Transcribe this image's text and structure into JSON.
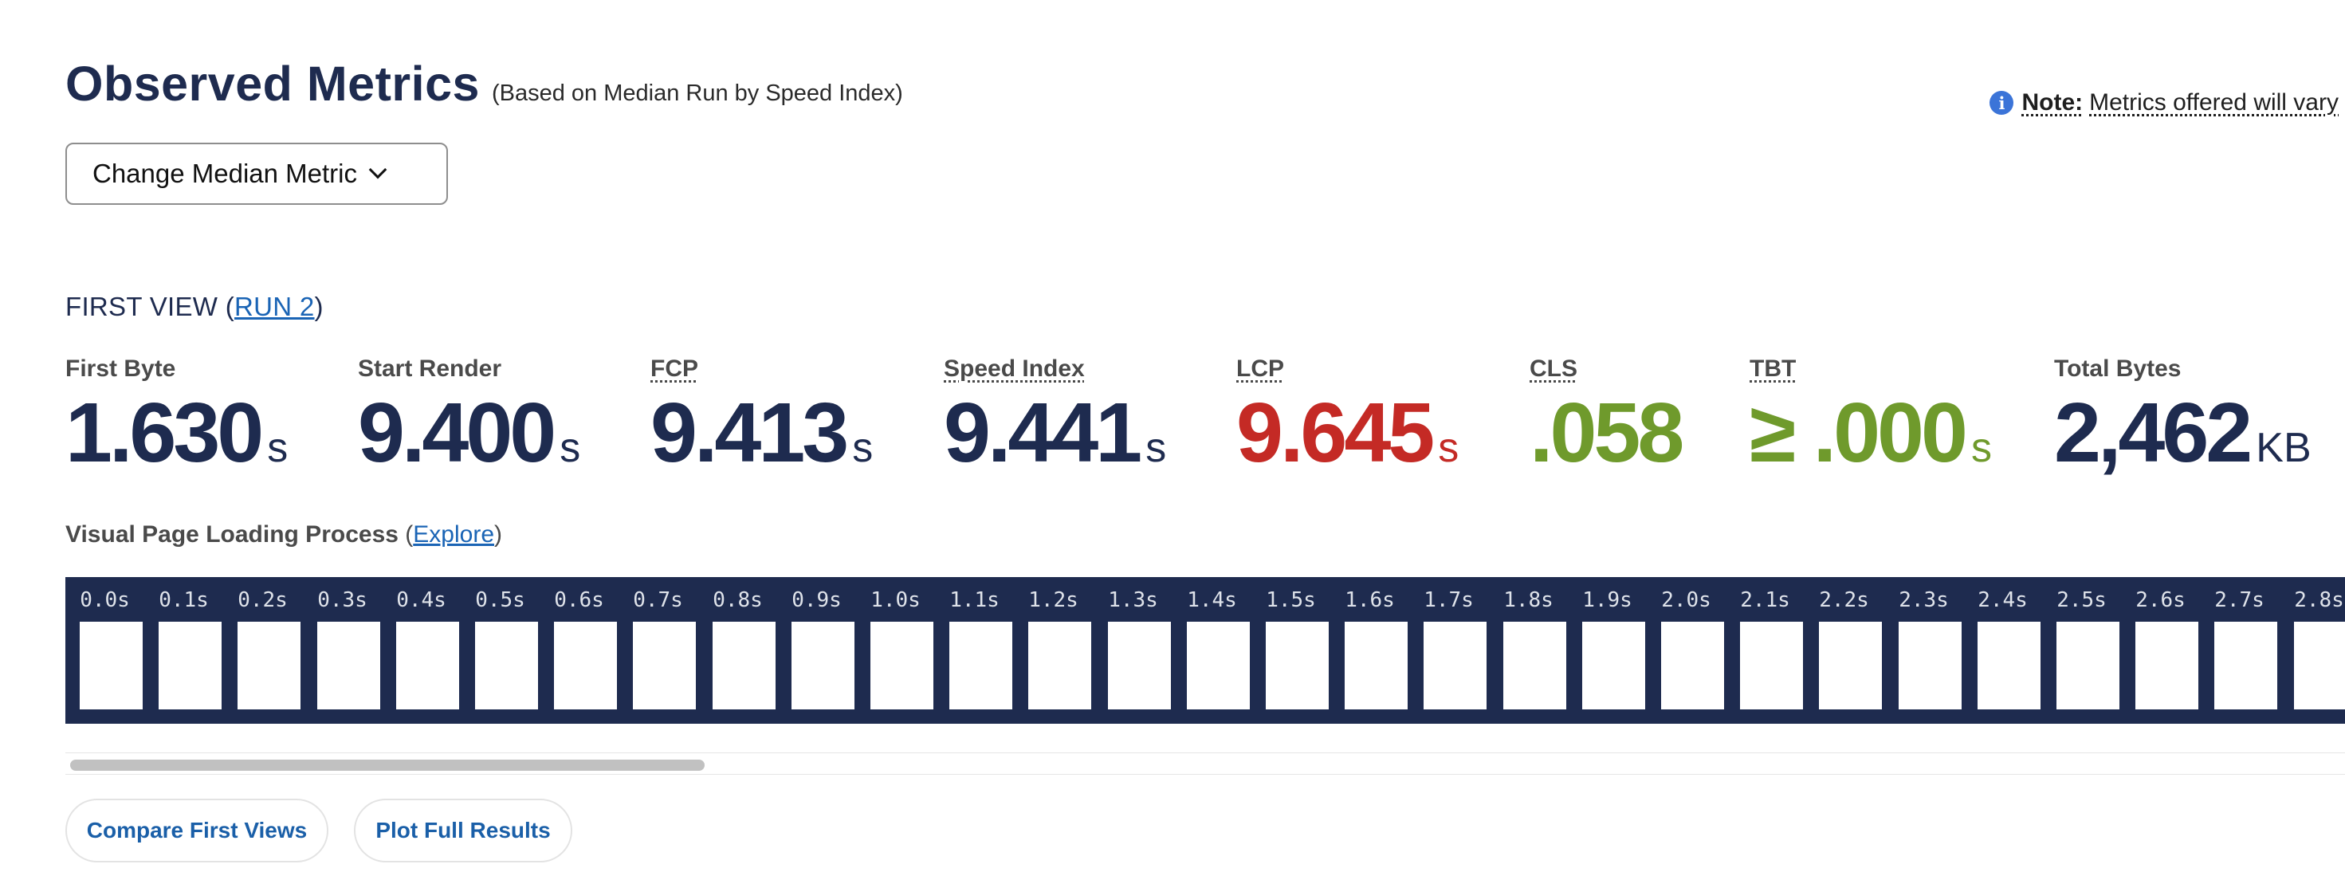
{
  "header": {
    "title": "Observed Metrics",
    "subtitle": "(Based on Median Run by Speed Index)",
    "note_icon": "i",
    "note_label": "Note:",
    "note_text": "Metrics offered will vary"
  },
  "median_button": {
    "label": "Change Median Metric"
  },
  "first_view": {
    "prefix": "FIRST VIEW (",
    "run_link": "RUN 2",
    "suffix": ")"
  },
  "metrics": [
    {
      "label": "First Byte",
      "value": "1.630",
      "unit": "s",
      "color": "#1e2b4f"
    },
    {
      "label": "Start Render",
      "value": "9.400",
      "unit": "s",
      "color": "#1e2b4f"
    },
    {
      "label": "FCP",
      "value": "9.413",
      "unit": "s",
      "color": "#1e2b4f"
    },
    {
      "label": "Speed Index",
      "value": "9.441",
      "unit": "s",
      "color": "#1e2b4f"
    },
    {
      "label": "LCP",
      "value": "9.645",
      "unit": "s",
      "color": "#c42a25"
    },
    {
      "label": "CLS",
      "value": ".058",
      "unit": "",
      "color": "#6f9a2c"
    },
    {
      "label": "TBT",
      "value": "≥ .000",
      "unit": "s",
      "color": "#6f9a2c"
    },
    {
      "label": "Total Bytes",
      "value": "2,462",
      "unit": "KB",
      "color": "#1e2b4f"
    }
  ],
  "filmstrip": {
    "heading": "Visual Page Loading Process",
    "open_paren": "(",
    "explore_link": "Explore",
    "close_paren": ")",
    "frames": [
      "0.0s",
      "0.1s",
      "0.2s",
      "0.3s",
      "0.4s",
      "0.5s",
      "0.6s",
      "0.7s",
      "0.8s",
      "0.9s",
      "1.0s",
      "1.1s",
      "1.2s",
      "1.3s",
      "1.4s",
      "1.5s",
      "1.6s",
      "1.7s",
      "1.8s",
      "1.9s",
      "2.0s",
      "2.1s",
      "2.2s",
      "2.3s",
      "2.4s",
      "2.5s",
      "2.6s",
      "2.7s",
      "2.8s"
    ]
  },
  "actions": {
    "compare_label": "Compare First Views",
    "plot_label": "Plot Full Results"
  }
}
